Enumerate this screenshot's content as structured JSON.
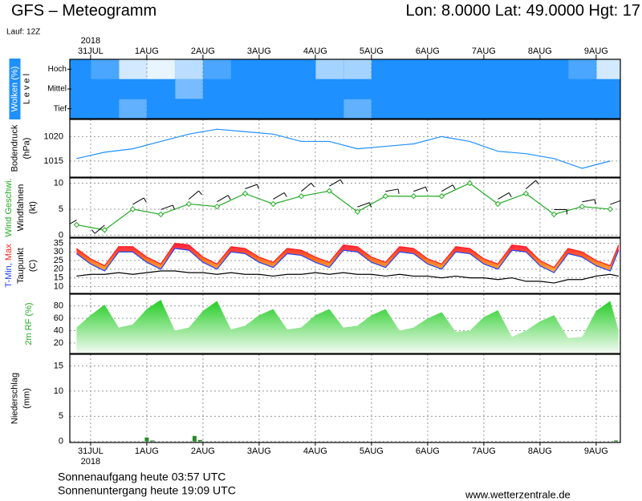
{
  "header": {
    "title": "GFS – Meteogramm",
    "location": "Lon: 8.0000 Lat: 49.0000 Hgt: 17",
    "run": "Lauf: 12Z"
  },
  "footer": {
    "sunrise": "Sonnenaufgang heute 03:57 UTC",
    "sunset": "Sonnenuntergang heute 19:09 UTC",
    "source": "www.wetterzentrale.de"
  },
  "chart_data": [
    {
      "type": "heatmap",
      "xaxis": "top",
      "year": "2018",
      "ylabel": [
        [
          {
            "text": "Wolken (%)",
            "color": "#ffffff",
            "background": "#1e90ff"
          }
        ],
        [
          {
            "text": "L e v e l",
            "color": "#000000"
          }
        ]
      ],
      "xlim": [
        -0.37,
        9.43
      ],
      "xticks": [
        {
          "value": 0,
          "label": "31JUL"
        },
        {
          "value": 1,
          "label": "1AUG"
        },
        {
          "value": 2,
          "label": "2AUG"
        },
        {
          "value": 3,
          "label": "3AUG"
        },
        {
          "value": 4,
          "label": "4AUG"
        },
        {
          "value": 5,
          "label": "5AUG"
        },
        {
          "value": 6,
          "label": "6AUG"
        },
        {
          "value": 7,
          "label": "7AUG"
        },
        {
          "value": 8,
          "label": "8AUG"
        },
        {
          "value": 9,
          "label": "9AUG"
        }
      ],
      "x": [
        -0.25,
        0.25,
        0.75,
        1.25,
        1.75,
        2.25,
        2.75,
        3.25,
        3.75,
        4.25,
        4.75,
        5.25,
        5.75,
        6.25,
        6.75,
        7.25,
        7.75,
        8.25,
        8.75,
        9.25
      ],
      "color": "#1e90ff",
      "series": [
        {
          "name": "Hoch",
          "values": [
            100,
            80,
            20,
            10,
            30,
            80,
            100,
            100,
            100,
            40,
            40,
            100,
            100,
            100,
            100,
            100,
            100,
            100,
            80,
            20
          ]
        },
        {
          "name": "Mittel",
          "values": [
            100,
            100,
            100,
            100,
            60,
            100,
            100,
            100,
            100,
            100,
            100,
            100,
            100,
            100,
            100,
            100,
            100,
            100,
            100,
            100
          ]
        },
        {
          "name": "Tief",
          "values": [
            100,
            100,
            70,
            100,
            100,
            100,
            100,
            100,
            100,
            100,
            70,
            100,
            100,
            100,
            100,
            100,
            100,
            100,
            100,
            100
          ]
        }
      ]
    },
    {
      "type": "line",
      "ylabel": [
        [
          {
            "text": "Bodendruck",
            "color": "#000000"
          }
        ],
        [
          {
            "text": "(hPa)",
            "color": "#000000"
          }
        ]
      ],
      "xlim": [
        -0.37,
        9.43
      ],
      "xticks": [
        {
          "value": 0,
          "label": "31JUL"
        },
        {
          "value": 1,
          "label": "1AUG"
        },
        {
          "value": 2,
          "label": "2AUG"
        },
        {
          "value": 3,
          "label": "3AUG"
        },
        {
          "value": 4,
          "label": "4AUG"
        },
        {
          "value": 5,
          "label": "5AUG"
        },
        {
          "value": 6,
          "label": "6AUG"
        },
        {
          "value": 7,
          "label": "7AUG"
        },
        {
          "value": 8,
          "label": "8AUG"
        },
        {
          "value": 9,
          "label": "9AUG"
        }
      ],
      "ylim": [
        1011.7,
        1023.5
      ],
      "yticks": [
        1015,
        1020
      ],
      "grid": true,
      "x": [
        -0.25,
        0.25,
        0.75,
        1.25,
        1.75,
        2.25,
        2.75,
        3.25,
        3.75,
        4.25,
        4.75,
        5.25,
        5.75,
        6.25,
        6.75,
        7.25,
        7.75,
        8.25,
        8.75,
        9.25
      ],
      "series": [
        {
          "color": "#1e90ff",
          "values": [
            1015.5,
            1016.8,
            1017.5,
            1019,
            1020.5,
            1021.5,
            1021,
            1020.5,
            1019,
            1019,
            1017.5,
            1018,
            1018.5,
            1020,
            1019,
            1017,
            1016.5,
            1015.5,
            1013.5,
            1015
          ]
        }
      ]
    },
    {
      "type": "line",
      "ylabel": [
        [
          {
            "text": "Wind Geschwi.",
            "color": "#22aa22"
          }
        ],
        [
          {
            "text": "Windfahnen",
            "color": "#000000"
          }
        ],
        [
          {
            "text": "(kt)",
            "color": "#000000"
          }
        ]
      ],
      "xlim": [
        -0.37,
        9.43
      ],
      "xticks": [
        {
          "value": 0,
          "label": "31JUL"
        },
        {
          "value": 1,
          "label": "1AUG"
        },
        {
          "value": 2,
          "label": "2AUG"
        },
        {
          "value": 3,
          "label": "3AUG"
        },
        {
          "value": 4,
          "label": "4AUG"
        },
        {
          "value": 5,
          "label": "5AUG"
        },
        {
          "value": 6,
          "label": "6AUG"
        },
        {
          "value": 7,
          "label": "7AUG"
        },
        {
          "value": 8,
          "label": "8AUG"
        },
        {
          "value": 9,
          "label": "9AUG"
        }
      ],
      "ylim": [
        -0.4,
        11
      ],
      "yticks": [
        0,
        5,
        10
      ],
      "grid": true,
      "x": [
        -0.25,
        0.25,
        0.75,
        1.25,
        1.75,
        2.25,
        2.75,
        3.25,
        3.75,
        4.25,
        4.75,
        5.25,
        5.75,
        6.25,
        6.75,
        7.25,
        7.75,
        8.25,
        8.75,
        9.25
      ],
      "series": [
        {
          "color": "#22aa22",
          "markers": true,
          "values": [
            2,
            1,
            5,
            4,
            6,
            5.5,
            8,
            6,
            7.5,
            8.5,
            4.5,
            7.5,
            7.5,
            7.5,
            10,
            6,
            8,
            4,
            5.5,
            5
          ]
        },
        {
          "color": "#000000",
          "style": "barb",
          "values": [
            240,
            230,
            60,
            70,
            50,
            60,
            70,
            60,
            50,
            60,
            70,
            80,
            70,
            60,
            70,
            60,
            50,
            90,
            80,
            70
          ]
        }
      ]
    },
    {
      "type": "line",
      "band": true,
      "ylabel": [
        [
          {
            "text": "T-Min, ",
            "color": "#2040ff"
          },
          {
            "text": "Max",
            "color": "#ff2020"
          }
        ],
        [
          {
            "text": "Taupunkt",
            "color": "#000000"
          }
        ],
        [
          {
            "text": "(C)",
            "color": "#000000"
          }
        ]
      ],
      "xlim": [
        -0.37,
        9.43
      ],
      "xticks": [
        {
          "value": 0,
          "label": "31JUL"
        },
        {
          "value": 1,
          "label": "1AUG"
        },
        {
          "value": 2,
          "label": "2AUG"
        },
        {
          "value": 3,
          "label": "3AUG"
        },
        {
          "value": 4,
          "label": "4AUG"
        },
        {
          "value": 5,
          "label": "5AUG"
        },
        {
          "value": 6,
          "label": "6AUG"
        },
        {
          "value": 7,
          "label": "7AUG"
        },
        {
          "value": 8,
          "label": "8AUG"
        },
        {
          "value": 9,
          "label": "9AUG"
        }
      ],
      "ylim": [
        6,
        38
      ],
      "yticks": [
        10,
        15,
        20,
        25,
        30,
        35
      ],
      "grid": true,
      "x": [
        -0.25,
        0,
        0.25,
        0.5,
        0.75,
        1,
        1.25,
        1.5,
        1.75,
        2,
        2.25,
        2.5,
        2.75,
        3,
        3.25,
        3.5,
        3.75,
        4,
        4.25,
        4.5,
        4.75,
        5,
        5.25,
        5.5,
        5.75,
        6,
        6.25,
        6.5,
        6.75,
        7,
        7.25,
        7.5,
        7.75,
        8,
        8.25,
        8.5,
        8.75,
        9,
        9.25,
        9.4
      ],
      "series": [
        {
          "color": "#2040ff",
          "values": [
            29,
            23,
            19,
            30,
            30,
            24,
            20,
            32,
            31,
            24,
            20,
            30,
            29,
            24,
            21,
            29,
            28,
            24,
            21,
            31,
            30,
            24,
            21,
            30,
            29,
            23,
            20,
            30,
            29,
            23,
            20,
            31,
            30,
            22,
            18,
            29,
            27,
            22,
            19,
            31
          ]
        },
        {
          "color": "#ff2020",
          "values": [
            32,
            26,
            22,
            33,
            33,
            27,
            23,
            35,
            34,
            27,
            23,
            33,
            32,
            27,
            24,
            32,
            31,
            27,
            24,
            34,
            33,
            27,
            24,
            33,
            32,
            26,
            23,
            33,
            32,
            26,
            23,
            34,
            33,
            25,
            21,
            32,
            30,
            25,
            22,
            34
          ]
        },
        {
          "color": "#000000",
          "values": [
            16,
            17,
            17,
            18,
            17,
            18,
            19,
            19,
            18,
            18,
            17,
            18,
            17,
            17,
            16,
            17,
            17,
            18,
            17,
            18,
            17,
            17,
            16,
            17,
            16,
            16,
            15,
            16,
            15,
            15,
            14,
            15,
            13,
            13,
            12,
            14,
            14,
            16,
            17,
            16
          ]
        }
      ]
    },
    {
      "type": "area",
      "ylabel": [
        [
          {
            "text": "2m RF (%)",
            "color": "#22aa22"
          }
        ]
      ],
      "xlim": [
        -0.37,
        9.43
      ],
      "xticks": [
        {
          "value": 0,
          "label": "31JUL"
        },
        {
          "value": 1,
          "label": "1AUG"
        },
        {
          "value": 2,
          "label": "2AUG"
        },
        {
          "value": 3,
          "label": "3AUG"
        },
        {
          "value": 4,
          "label": "4AUG"
        },
        {
          "value": 5,
          "label": "5AUG"
        },
        {
          "value": 6,
          "label": "6AUG"
        },
        {
          "value": 7,
          "label": "7AUG"
        },
        {
          "value": 8,
          "label": "8AUG"
        },
        {
          "value": 9,
          "label": "9AUG"
        }
      ],
      "ylim": [
        3,
        99
      ],
      "yticks": [
        20,
        40,
        60,
        80
      ],
      "grid": true,
      "x": [
        -0.25,
        0,
        0.25,
        0.5,
        0.75,
        1,
        1.25,
        1.5,
        1.75,
        2,
        2.25,
        2.5,
        2.75,
        3,
        3.25,
        3.5,
        3.75,
        4,
        4.25,
        4.5,
        4.75,
        5,
        5.25,
        5.5,
        5.75,
        6,
        6.25,
        6.5,
        6.75,
        7,
        7.25,
        7.5,
        7.75,
        8,
        8.25,
        8.5,
        8.75,
        9,
        9.25,
        9.4
      ],
      "series": [
        {
          "color": "#22cc22",
          "values": [
            45,
            65,
            82,
            45,
            50,
            75,
            90,
            40,
            45,
            72,
            88,
            42,
            48,
            65,
            75,
            42,
            45,
            65,
            75,
            45,
            48,
            65,
            75,
            40,
            45,
            60,
            70,
            38,
            40,
            62,
            73,
            30,
            40,
            55,
            65,
            28,
            30,
            72,
            88,
            40
          ]
        }
      ]
    },
    {
      "type": "bar",
      "xaxis": "bottom",
      "year": "2018",
      "ylabel": [
        [
          {
            "text": "Niederschlag",
            "color": "#000000"
          }
        ],
        [
          {
            "text": "(mm)",
            "color": "#000000"
          }
        ]
      ],
      "xlim": [
        -0.37,
        9.43
      ],
      "xticks": [
        {
          "value": 0,
          "label": "31JUL"
        },
        {
          "value": 1,
          "label": "1AUG"
        },
        {
          "value": 2,
          "label": "2AUG"
        },
        {
          "value": 3,
          "label": "3AUG"
        },
        {
          "value": 4,
          "label": "4AUG"
        },
        {
          "value": 5,
          "label": "5AUG"
        },
        {
          "value": 6,
          "label": "6AUG"
        },
        {
          "value": 7,
          "label": "7AUG"
        },
        {
          "value": 8,
          "label": "8AUG"
        },
        {
          "value": 9,
          "label": "9AUG"
        }
      ],
      "ylim": [
        -0.2,
        17.3
      ],
      "yticks": [
        0,
        5,
        10,
        15
      ],
      "grid": true,
      "x": [
        1.0,
        1.1,
        1.85,
        1.95,
        9.35
      ],
      "series": [
        {
          "color": "#2a8a2a",
          "values": [
            0.8,
            0.2,
            1.1,
            0.3,
            0.2
          ]
        }
      ]
    }
  ]
}
